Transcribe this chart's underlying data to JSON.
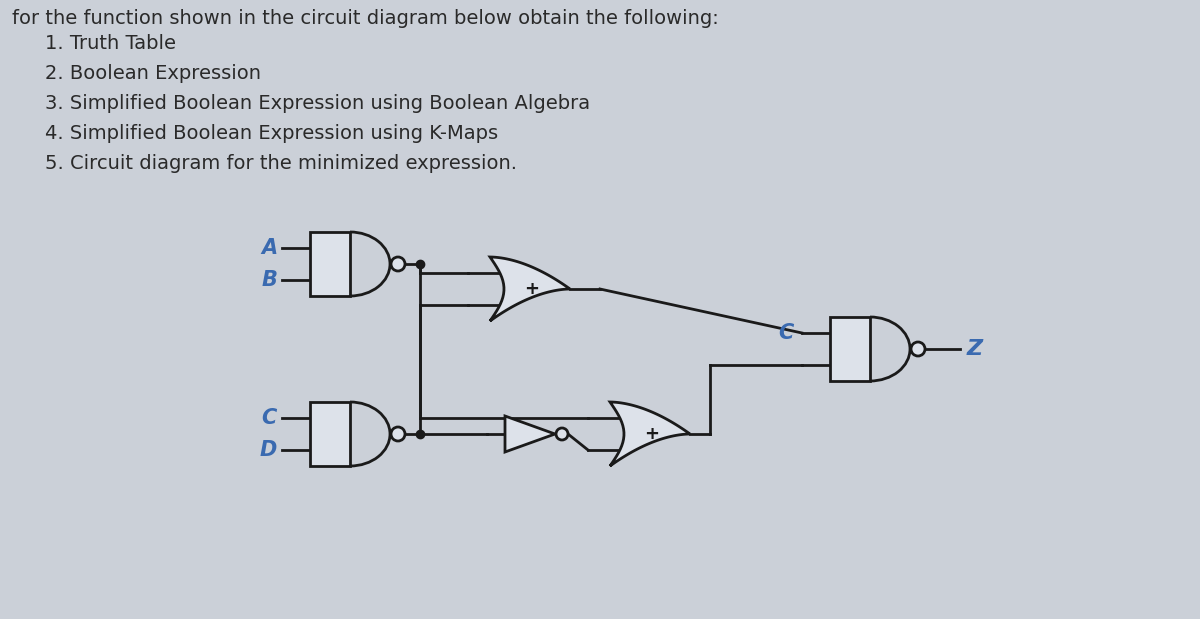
{
  "bg_color": "#cbd0d8",
  "text_color": "#2a2a2a",
  "title_text": "for the function shown in the circuit diagram below obtain the following:",
  "items": [
    "1. Truth Table",
    "2. Boolean Expression",
    "3. Simplified Boolean Expression using Boolean Algebra",
    "4. Simplified Boolean Expression using K-Maps",
    "5. Circuit diagram for the minimized expression."
  ],
  "title_fontsize": 14,
  "item_fontsize": 14,
  "label_fontsize": 15,
  "gate_lw": 2.0,
  "wire_lw": 2.0,
  "gate_color": "#1a1a1a",
  "gate_fill": "#dde2ea",
  "wire_color": "#1a1a1a",
  "label_color": "#3a6ab0",
  "dot_size": 6
}
